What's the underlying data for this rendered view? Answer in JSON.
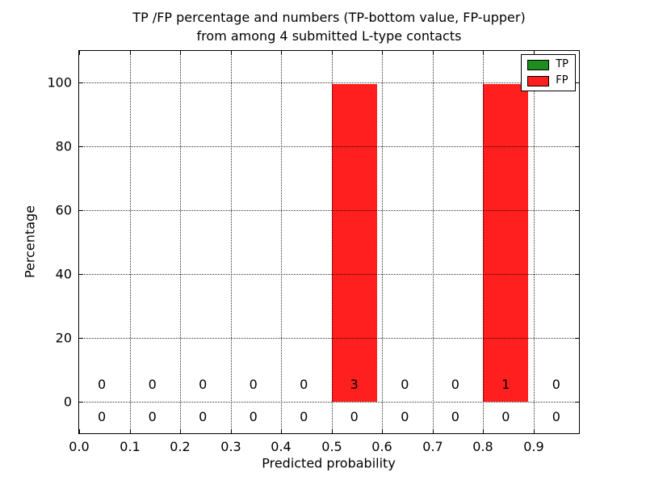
{
  "chart_data": {
    "type": "bar",
    "stacked": true,
    "title_lines": [
      "TP /FP percentage and numbers (TP-bottom value, FP-upper)",
      "from among 4 submitted L-type contacts"
    ],
    "xlabel": "Predicted probability",
    "ylabel": "Percentage",
    "xlim": [
      0,
      0.99
    ],
    "ylim": [
      -10,
      110
    ],
    "x_ticks": [
      0.0,
      0.1,
      0.2,
      0.3,
      0.4,
      0.5,
      0.6,
      0.7,
      0.8,
      0.9
    ],
    "x_tick_labels": [
      "0.0",
      "0.1",
      "0.2",
      "0.3",
      "0.4",
      "0.5",
      "0.6",
      "0.7",
      "0.8",
      "0.9"
    ],
    "y_ticks": [
      0,
      20,
      40,
      60,
      80,
      100
    ],
    "y_tick_labels": [
      "0",
      "20",
      "40",
      "60",
      "80",
      "100"
    ],
    "grid": true,
    "grid_style": "dotted",
    "bin_left_edges": [
      0.0,
      0.1,
      0.2,
      0.3,
      0.4,
      0.5,
      0.6,
      0.7,
      0.8,
      0.9
    ],
    "bar_width": 0.09,
    "series": [
      {
        "name": "TP",
        "color": "#1e8c1e",
        "percentages": [
          0,
          0,
          0,
          0,
          0,
          0,
          0,
          0,
          0,
          0
        ],
        "counts": [
          0,
          0,
          0,
          0,
          0,
          0,
          0,
          0,
          0,
          0
        ]
      },
      {
        "name": "FP",
        "color": "#ff1f1f",
        "percentages": [
          0,
          0,
          0,
          0,
          0,
          99.5,
          0,
          0,
          99.5,
          0
        ],
        "counts": [
          0,
          0,
          0,
          0,
          0,
          3,
          0,
          0,
          1,
          0
        ]
      }
    ],
    "legend": {
      "position": "upper-right",
      "entries": [
        {
          "label": "TP",
          "color": "#1e8c1e"
        },
        {
          "label": "FP",
          "color": "#ff1f1f"
        }
      ]
    }
  }
}
